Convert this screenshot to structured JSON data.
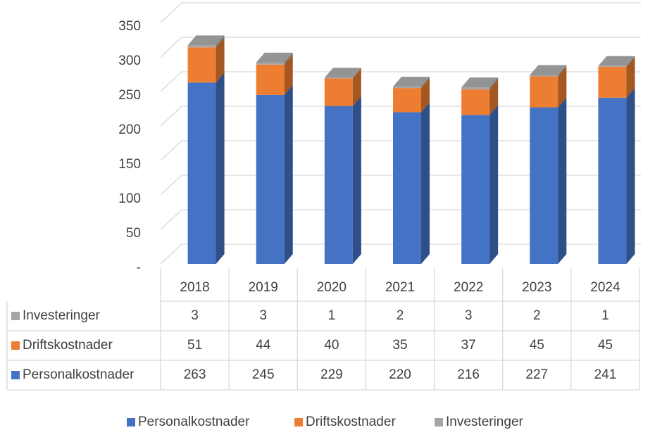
{
  "chart_data": {
    "type": "bar3d-stacked-table",
    "categories": [
      "2018",
      "2019",
      "2020",
      "2021",
      "2022",
      "2023",
      "2024"
    ],
    "series": [
      {
        "name": "Personalkostnader",
        "color": "#4472c4",
        "values": [
          263,
          245,
          229,
          220,
          216,
          227,
          241
        ]
      },
      {
        "name": "Driftskostnader",
        "color": "#ed7d31",
        "values": [
          51,
          44,
          40,
          35,
          37,
          45,
          45
        ]
      },
      {
        "name": "Investeringer",
        "color": "#a5a5a5",
        "values": [
          3,
          3,
          1,
          2,
          3,
          2,
          1
        ]
      }
    ],
    "ylim": [
      0,
      350
    ],
    "yticks": [
      {
        "value": 0,
        "label": "-"
      },
      50,
      100,
      150,
      200,
      250,
      300,
      350
    ],
    "grid": true,
    "legend": "bottom",
    "data_table": true
  }
}
